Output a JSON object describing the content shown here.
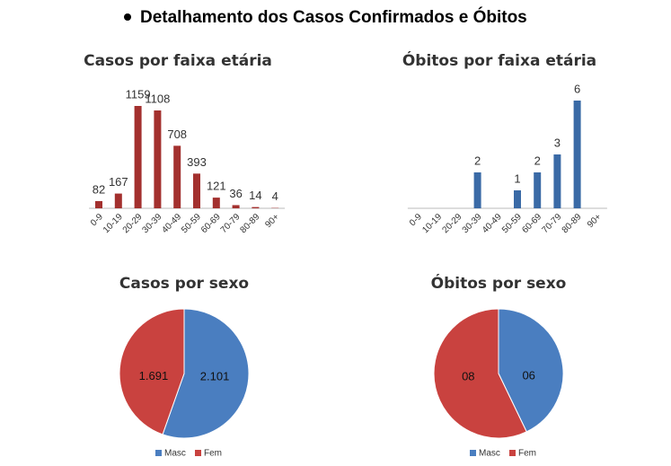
{
  "title": "Detalhamento dos Casos Confirmados e Óbitos",
  "chart_data": [
    {
      "type": "bar",
      "title": "Casos por faixa etária",
      "categories": [
        "0-9",
        "10-19",
        "20-29",
        "30-39",
        "40-49",
        "50-59",
        "60-69",
        "70-79",
        "80-89",
        "90+"
      ],
      "values": [
        82,
        167,
        1159,
        1108,
        708,
        393,
        121,
        36,
        14,
        4
      ],
      "color": "#a3302e"
    },
    {
      "type": "bar",
      "title": "Óbitos por faixa etária",
      "categories": [
        "0-9",
        "10-19",
        "20-29",
        "30-39",
        "40-49",
        "50-59",
        "60-69",
        "70-79",
        "80-89",
        "90+"
      ],
      "values": [
        null,
        null,
        null,
        2,
        null,
        1,
        2,
        3,
        6,
        null
      ],
      "color": "#3a6aa6"
    },
    {
      "type": "pie",
      "title": "Casos por sexo",
      "categories": [
        "Masc",
        "Fem"
      ],
      "values": [
        2101,
        1691
      ],
      "value_labels": [
        "2.101",
        "1.691"
      ],
      "colors": [
        "#4a7ec0",
        "#c9423f"
      ]
    },
    {
      "type": "pie",
      "title": "Óbitos por sexo",
      "categories": [
        "Masc",
        "Fem"
      ],
      "values": [
        6,
        8
      ],
      "value_labels": [
        "06",
        "08"
      ],
      "colors": [
        "#4a7ec0",
        "#c9423f"
      ]
    }
  ]
}
